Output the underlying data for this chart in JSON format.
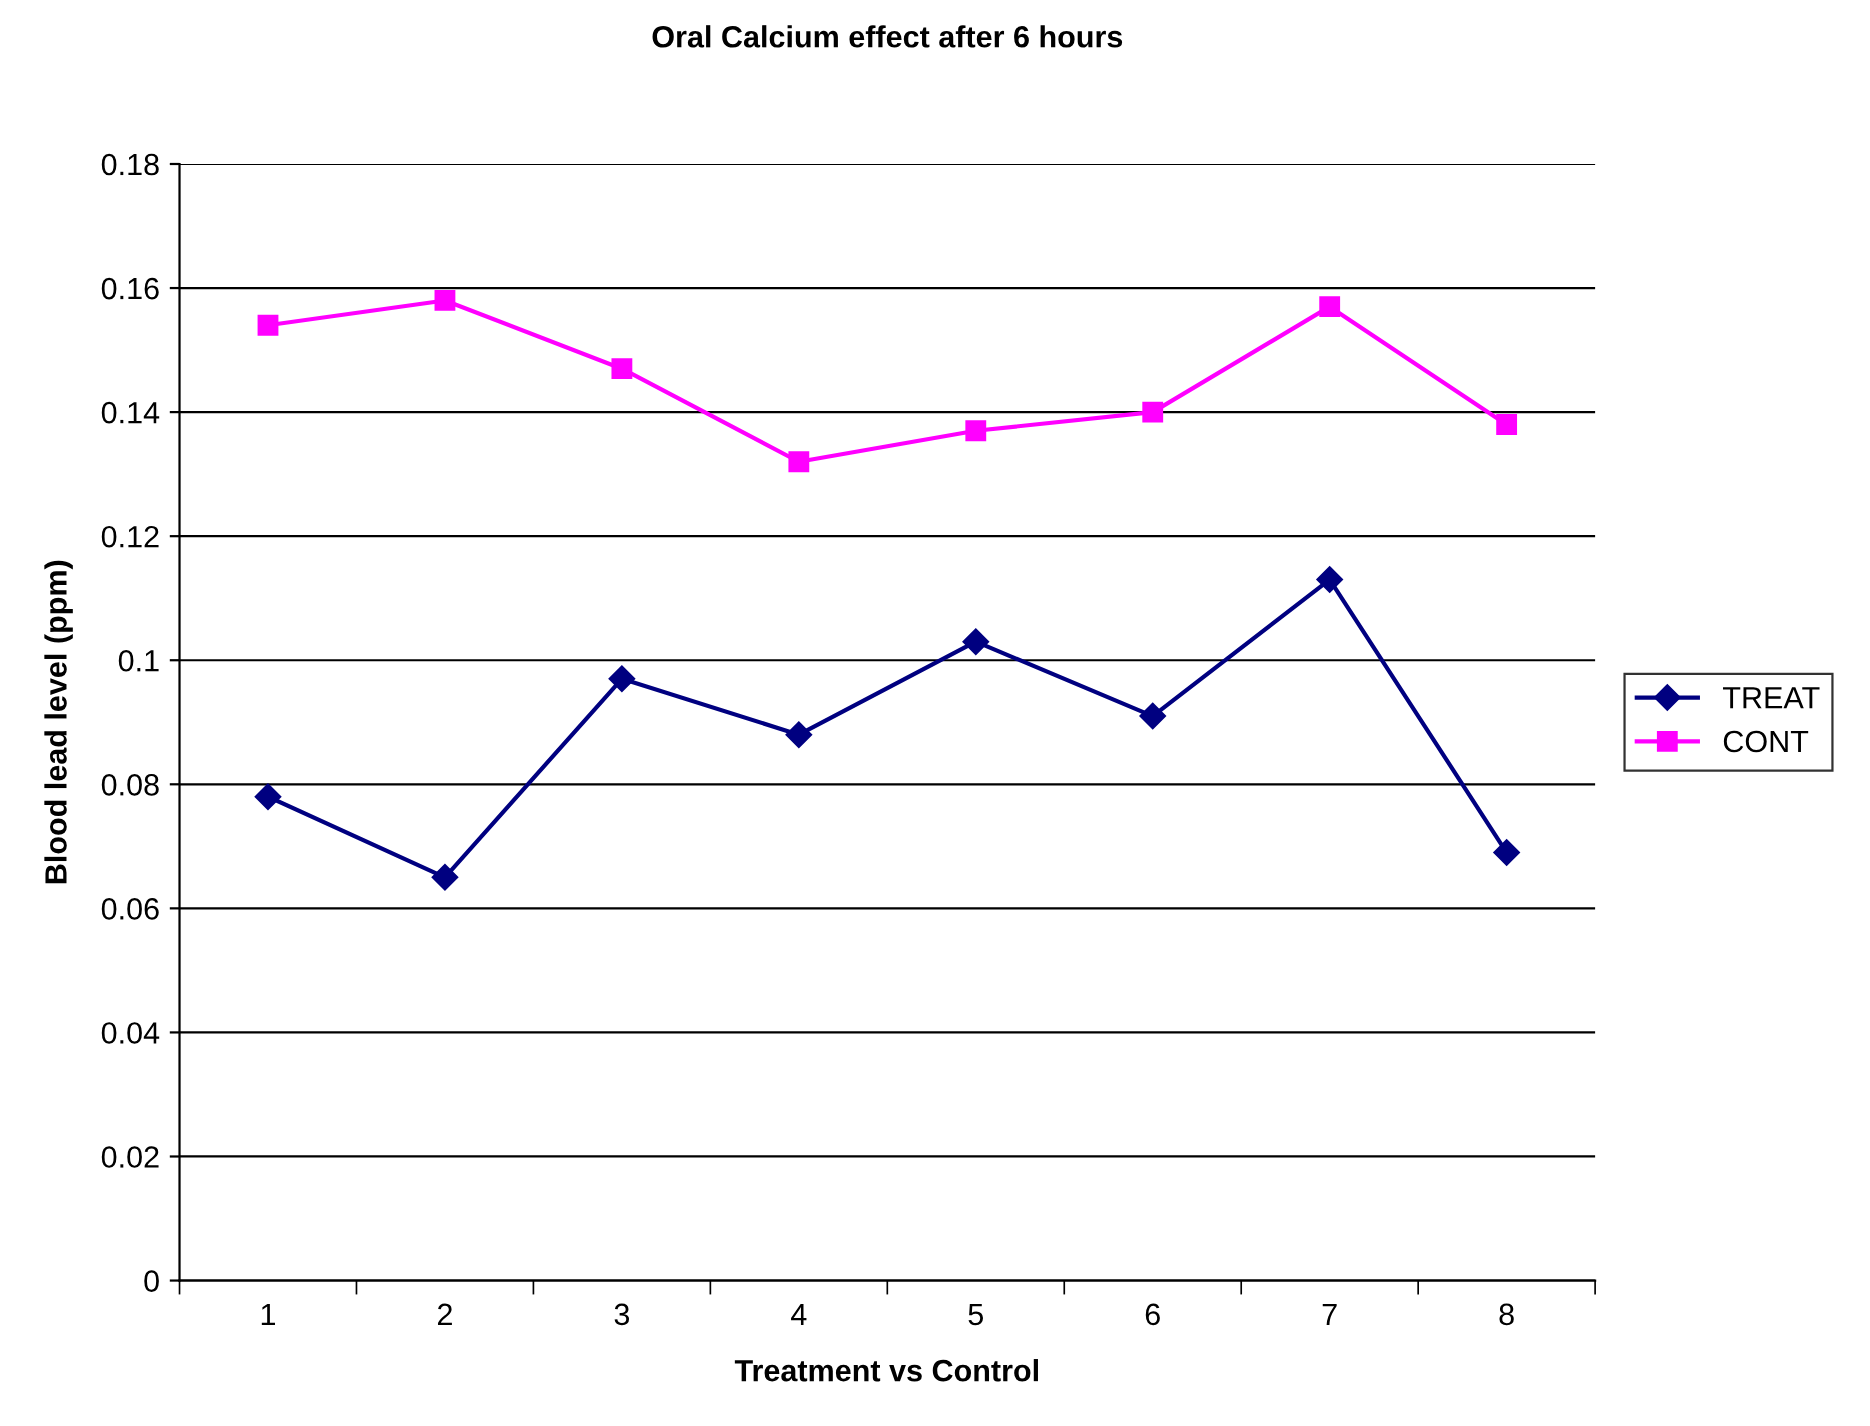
{
  "chart_data": {
    "type": "line",
    "title": "Oral Calcium effect after 6 hours",
    "xlabel": "Treatment vs Control",
    "ylabel": "Blood lead level (ppm)",
    "categories": [
      "1",
      "2",
      "3",
      "4",
      "5",
      "6",
      "7",
      "8"
    ],
    "series": [
      {
        "name": "TREAT",
        "color": "#000080",
        "marker": "diamond",
        "values": [
          0.078,
          0.065,
          0.097,
          0.088,
          0.103,
          0.091,
          0.113,
          0.069
        ]
      },
      {
        "name": "CONT",
        "color": "#ff00ff",
        "marker": "square",
        "values": [
          0.154,
          0.158,
          0.147,
          0.132,
          0.137,
          0.14,
          0.157,
          0.138
        ]
      }
    ],
    "ylim": [
      0,
      0.18
    ],
    "yticks": [
      0,
      0.02,
      0.04,
      0.06,
      0.08,
      0.1,
      0.12,
      0.14,
      0.16,
      0.18
    ],
    "grid": "y",
    "legend": "right",
    "line_style": "solid"
  }
}
